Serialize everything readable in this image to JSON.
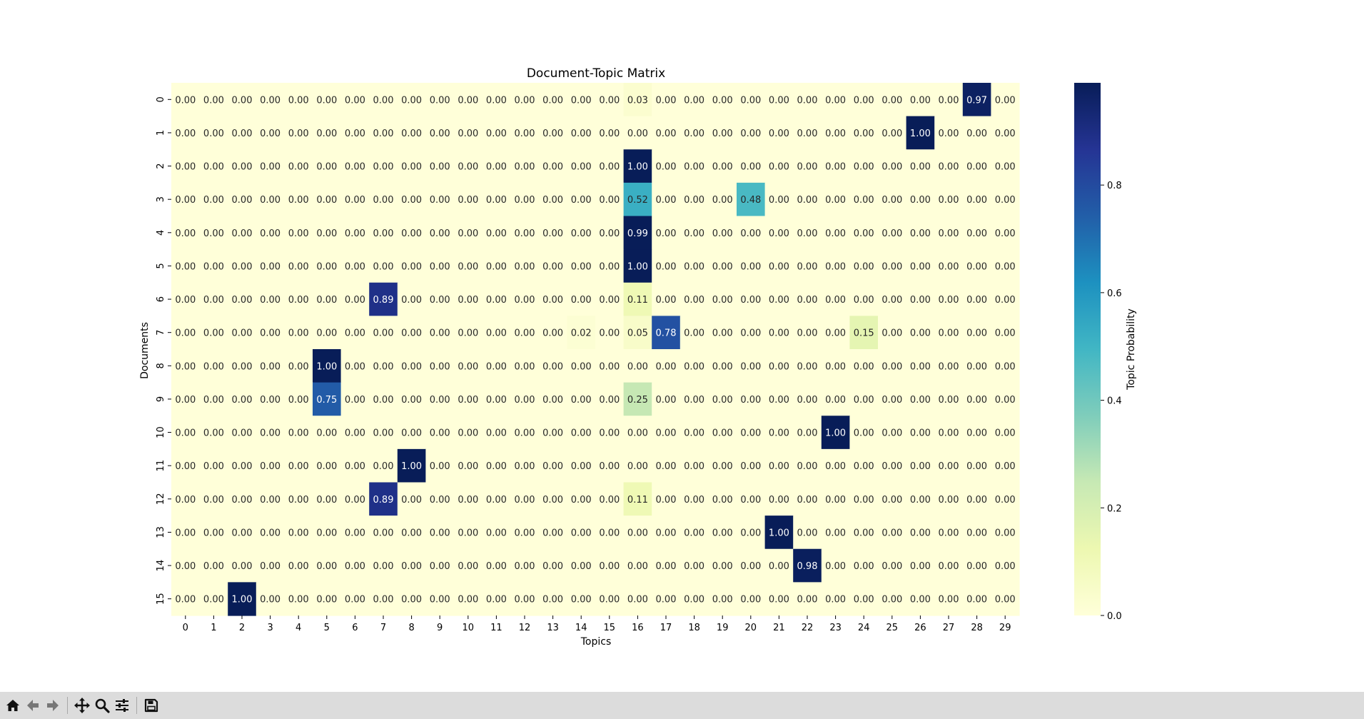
{
  "chart_data": {
    "type": "heatmap",
    "title": "Document-Topic Matrix",
    "xlabel": "Topics",
    "ylabel": "Documents",
    "x_categories": [
      "0",
      "1",
      "2",
      "3",
      "4",
      "5",
      "6",
      "7",
      "8",
      "9",
      "10",
      "11",
      "12",
      "13",
      "14",
      "15",
      "16",
      "17",
      "18",
      "19",
      "20",
      "21",
      "22",
      "23",
      "24",
      "25",
      "26",
      "27",
      "28",
      "29"
    ],
    "y_categories": [
      "0",
      "1",
      "2",
      "3",
      "4",
      "5",
      "6",
      "7",
      "8",
      "9",
      "10",
      "11",
      "12",
      "13",
      "14",
      "15"
    ],
    "values": [
      [
        0,
        0,
        0,
        0,
        0,
        0,
        0,
        0,
        0,
        0,
        0,
        0,
        0,
        0,
        0,
        0,
        0.03,
        0,
        0,
        0,
        0,
        0,
        0,
        0,
        0,
        0,
        0,
        0,
        0.97,
        0
      ],
      [
        0,
        0,
        0,
        0,
        0,
        0,
        0,
        0,
        0,
        0,
        0,
        0,
        0,
        0,
        0,
        0,
        0,
        0,
        0,
        0,
        0,
        0,
        0,
        0,
        0,
        0,
        1.0,
        0,
        0,
        0
      ],
      [
        0,
        0,
        0,
        0,
        0,
        0,
        0,
        0,
        0,
        0,
        0,
        0,
        0,
        0,
        0,
        0,
        1.0,
        0,
        0,
        0,
        0,
        0,
        0,
        0,
        0,
        0,
        0,
        0,
        0,
        0
      ],
      [
        0,
        0,
        0,
        0,
        0,
        0,
        0,
        0,
        0,
        0,
        0,
        0,
        0,
        0,
        0,
        0,
        0.52,
        0,
        0,
        0,
        0.48,
        0,
        0,
        0,
        0,
        0,
        0,
        0,
        0,
        0
      ],
      [
        0,
        0,
        0,
        0,
        0,
        0,
        0,
        0,
        0,
        0,
        0,
        0,
        0,
        0,
        0,
        0,
        0.99,
        0,
        0,
        0,
        0,
        0,
        0,
        0,
        0,
        0,
        0,
        0,
        0,
        0
      ],
      [
        0,
        0,
        0,
        0,
        0,
        0,
        0,
        0,
        0,
        0,
        0,
        0,
        0,
        0,
        0,
        0,
        1.0,
        0,
        0,
        0,
        0,
        0,
        0,
        0,
        0,
        0,
        0,
        0,
        0,
        0
      ],
      [
        0,
        0,
        0,
        0,
        0,
        0,
        0,
        0.89,
        0,
        0,
        0,
        0,
        0,
        0,
        0,
        0,
        0.11,
        0,
        0,
        0,
        0,
        0,
        0,
        0,
        0,
        0,
        0,
        0,
        0,
        0
      ],
      [
        0,
        0,
        0,
        0,
        0,
        0,
        0,
        0,
        0,
        0,
        0,
        0,
        0,
        0,
        0.02,
        0,
        0.05,
        0.78,
        0,
        0,
        0,
        0,
        0,
        0,
        0.15,
        0,
        0,
        0,
        0,
        0
      ],
      [
        0,
        0,
        0,
        0,
        0,
        1.0,
        0,
        0,
        0,
        0,
        0,
        0,
        0,
        0,
        0,
        0,
        0,
        0,
        0,
        0,
        0,
        0,
        0,
        0,
        0,
        0,
        0,
        0,
        0,
        0
      ],
      [
        0,
        0,
        0,
        0,
        0,
        0.75,
        0,
        0,
        0,
        0,
        0,
        0,
        0,
        0,
        0,
        0,
        0.25,
        0,
        0,
        0,
        0,
        0,
        0,
        0,
        0,
        0,
        0,
        0,
        0,
        0
      ],
      [
        0,
        0,
        0,
        0,
        0,
        0,
        0,
        0,
        0,
        0,
        0,
        0,
        0,
        0,
        0,
        0,
        0,
        0,
        0,
        0,
        0,
        0,
        0,
        1.0,
        0,
        0,
        0,
        0,
        0,
        0
      ],
      [
        0,
        0,
        0,
        0,
        0,
        0,
        0,
        0,
        1.0,
        0,
        0,
        0,
        0,
        0,
        0,
        0,
        0,
        0,
        0,
        0,
        0,
        0,
        0,
        0,
        0,
        0,
        0,
        0,
        0,
        0
      ],
      [
        0,
        0,
        0,
        0,
        0,
        0,
        0,
        0.89,
        0,
        0,
        0,
        0,
        0,
        0,
        0,
        0,
        0.11,
        0,
        0,
        0,
        0,
        0,
        0,
        0,
        0,
        0,
        0,
        0,
        0,
        0
      ],
      [
        0,
        0,
        0,
        0,
        0,
        0,
        0,
        0,
        0,
        0,
        0,
        0,
        0,
        0,
        0,
        0,
        0,
        0,
        0,
        0,
        0,
        1.0,
        0,
        0,
        0,
        0,
        0,
        0,
        0,
        0
      ],
      [
        0,
        0,
        0,
        0,
        0,
        0,
        0,
        0,
        0,
        0,
        0,
        0,
        0,
        0,
        0,
        0,
        0,
        0,
        0,
        0,
        0,
        0,
        0.98,
        0,
        0,
        0,
        0,
        0,
        0,
        0
      ],
      [
        0,
        0,
        1.0,
        0,
        0,
        0,
        0,
        0,
        0,
        0,
        0,
        0,
        0,
        0,
        0,
        0,
        0,
        0,
        0,
        0,
        0,
        0,
        0,
        0,
        0,
        0,
        0,
        0,
        0,
        0
      ]
    ],
    "value_format": "0.00",
    "colormap": "YlGnBu",
    "colorbar": {
      "label": "Topic Probability",
      "range": [
        0,
        0.99
      ],
      "ticks": [
        0.0,
        0.2,
        0.4,
        0.6,
        0.8
      ],
      "tick_labels": [
        "0.0",
        "0.2",
        "0.4",
        "0.6",
        "0.8"
      ]
    },
    "colorscale": [
      "#ffffd9",
      "#edf8b1",
      "#c7e9b4",
      "#7fcdbb",
      "#41b6c4",
      "#1d91c0",
      "#225ea8",
      "#253494",
      "#081d58"
    ],
    "annotation_colors": {
      "light_bg": "#262626",
      "dark_bg": "#ffffff"
    }
  },
  "toolbar": {
    "buttons": [
      {
        "name": "home-button",
        "icon": "home-icon"
      },
      {
        "name": "back-button",
        "icon": "arrow-left-icon"
      },
      {
        "name": "forward-button",
        "icon": "arrow-right-icon"
      },
      {
        "name": "pan-button",
        "icon": "move-icon"
      },
      {
        "name": "zoom-button",
        "icon": "magnifier-icon"
      },
      {
        "name": "configure-subplots-button",
        "icon": "sliders-icon"
      },
      {
        "name": "save-button",
        "icon": "floppy-disk-icon"
      }
    ]
  }
}
